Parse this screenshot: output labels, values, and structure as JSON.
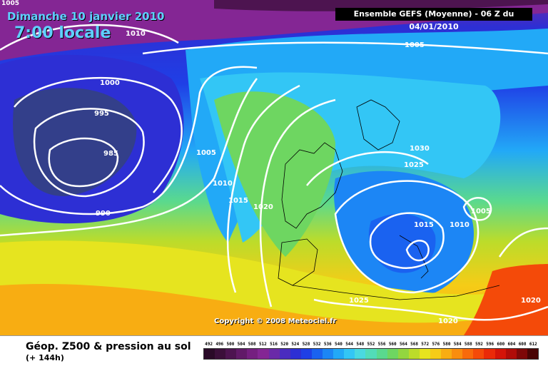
{
  "header": {
    "date": "Dimanche 10 janvier 2010",
    "time": "7:00 locale",
    "model": "Ensemble GEFS (Moyenne)  - 06 Z du 04/01/2010"
  },
  "copyright": "Copyright © 2008 Meteociel.fr",
  "isobars": {
    "corner": "1005",
    "i1010_top": "1010",
    "i1005_top": "1005",
    "i1000": "1000",
    "i995": "995",
    "i985": "985",
    "i990": "990",
    "i1005_mid": "1005",
    "i1010_mid": "1010",
    "i1015_mid": "1015",
    "i1020_mid": "1020",
    "i1030": "1030",
    "i1025_eur": "1025",
    "i1015_eur": "1015",
    "i1010_eur": "1010",
    "i1005_eur": "1005",
    "i1025_bot": "1025",
    "i1020_bot": "1020",
    "i1020_right": "1020"
  },
  "legend": {
    "title": "Géop. Z500 & pression au sol",
    "subtitle": "(+ 144h)",
    "scale": [
      {
        "label": "492",
        "color": "#2a0a28"
      },
      {
        "label": "496",
        "color": "#3b0f3a"
      },
      {
        "label": "500",
        "color": "#4d1450"
      },
      {
        "label": "504",
        "color": "#611a68"
      },
      {
        "label": "508",
        "color": "#751f80"
      },
      {
        "label": "512",
        "color": "#842694"
      },
      {
        "label": "516",
        "color": "#6a2aa8"
      },
      {
        "label": "520",
        "color": "#4a2cbf"
      },
      {
        "label": "524",
        "color": "#2d2fd4"
      },
      {
        "label": "528",
        "color": "#1f3fe6"
      },
      {
        "label": "532",
        "color": "#1a62f0"
      },
      {
        "label": "536",
        "color": "#1c86f5"
      },
      {
        "label": "540",
        "color": "#22a9f7"
      },
      {
        "label": "544",
        "color": "#33c6f5"
      },
      {
        "label": "548",
        "color": "#4ad9e0"
      },
      {
        "label": "552",
        "color": "#52dcb8"
      },
      {
        "label": "556",
        "color": "#5ad98e"
      },
      {
        "label": "560",
        "color": "#6ed661"
      },
      {
        "label": "564",
        "color": "#93d63f"
      },
      {
        "label": "568",
        "color": "#bcdc2a"
      },
      {
        "label": "572",
        "color": "#e6e41f"
      },
      {
        "label": "576",
        "color": "#f5cc17"
      },
      {
        "label": "580",
        "color": "#f8ad12"
      },
      {
        "label": "584",
        "color": "#f98d0e"
      },
      {
        "label": "588",
        "color": "#f86a0b"
      },
      {
        "label": "592",
        "color": "#f44a09"
      },
      {
        "label": "596",
        "color": "#ea2a08"
      },
      {
        "label": "600",
        "color": "#d41408"
      },
      {
        "label": "604",
        "color": "#b00c08"
      },
      {
        "label": "608",
        "color": "#7e0808"
      },
      {
        "label": "612",
        "color": "#4a0505"
      }
    ]
  }
}
